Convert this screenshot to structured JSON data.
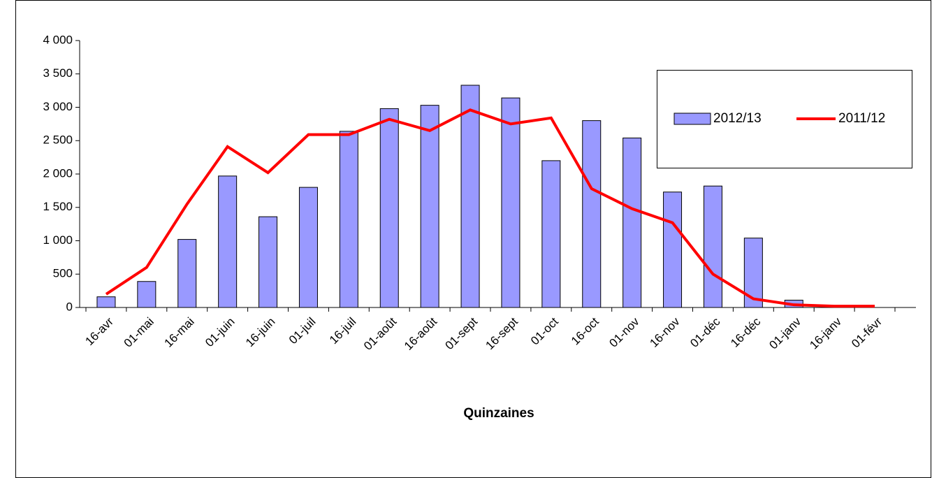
{
  "chart_data": {
    "type": "bar_line",
    "x_label": "Quinzaines",
    "categories": [
      "16-avr",
      "01-mai",
      "16-mai",
      "01-juin",
      "16-juin",
      "01-juil",
      "16-juil",
      "01-août",
      "16-août",
      "01-sept",
      "16-sept",
      "01-oct",
      "16-oct",
      "01-nov",
      "16-nov",
      "01-déc",
      "16-déc",
      "01-janv",
      "16-janv",
      "01-févr"
    ],
    "series": [
      {
        "name": "2012/13",
        "type": "bar",
        "color": "#9999ff",
        "values": [
          160,
          390,
          1020,
          1970,
          1360,
          1800,
          2640,
          2980,
          3030,
          3330,
          3140,
          2200,
          2800,
          2540,
          1730,
          1820,
          1040,
          110,
          null,
          null
        ]
      },
      {
        "name": "2011/12",
        "type": "line",
        "color": "#ff0000",
        "values": [
          200,
          600,
          1550,
          2410,
          2020,
          2590,
          2590,
          2820,
          2650,
          2960,
          2750,
          2840,
          1780,
          1480,
          1270,
          500,
          130,
          40,
          20,
          20
        ]
      }
    ],
    "ylim": [
      0,
      4000
    ],
    "yticks": [
      0,
      500,
      {
        "value": 1000,
        "label": "1 000"
      },
      {
        "value": 1500,
        "label": "1 500"
      },
      {
        "value": 2000,
        "label": "2 000"
      },
      {
        "value": 2500,
        "label": "2 500"
      },
      {
        "value": 3000,
        "label": "3 000"
      },
      {
        "value": 3500,
        "label": "3 500"
      },
      {
        "value": 4000,
        "label": "4 000"
      }
    ],
    "legend": "upper right"
  }
}
